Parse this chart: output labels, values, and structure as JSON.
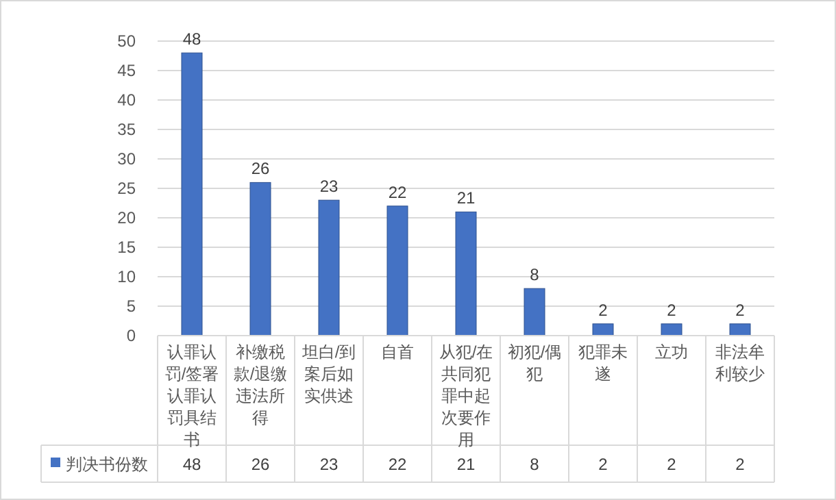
{
  "chart_data": {
    "type": "bar",
    "categories": [
      "认罪认罚/签署认罪认罚具结书",
      "补缴税款/退缴违法所得",
      "坦白/到案后如实供述",
      "自首",
      "从犯/在共同犯罪中起次要作用",
      "初犯/偶犯",
      "犯罪未遂",
      "立功",
      "非法牟利较少"
    ],
    "series": [
      {
        "name": "判决书份数",
        "color": "#4472c4",
        "values": [
          48,
          26,
          23,
          22,
          21,
          8,
          2,
          2,
          2
        ],
        "value_labels": [
          "48",
          "26",
          "23",
          "22",
          "21",
          "8",
          "2",
          "2",
          "2"
        ]
      }
    ],
    "ylim": [
      0,
      50
    ],
    "yticks": [
      0,
      5,
      10,
      15,
      20,
      25,
      30,
      35,
      40,
      45,
      50
    ],
    "grid": "y",
    "legend": "bottom",
    "data_labels": true
  }
}
